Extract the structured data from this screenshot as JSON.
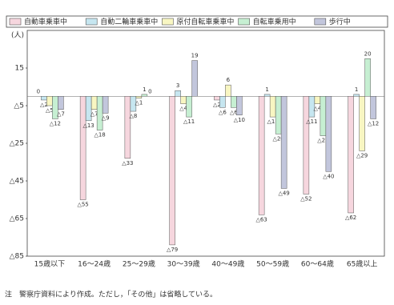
{
  "chart_data": {
    "type": "bar",
    "y_unit": "(人)",
    "categories": [
      "15歳以下",
      "16～24歳",
      "25～29歳",
      "30～39歳",
      "40～49歳",
      "50～59歳",
      "60～64歳",
      "65歳以上"
    ],
    "series": [
      {
        "name": "自動車乗車中",
        "color": "#f6d6de",
        "values": [
          0,
          -55,
          -33,
          -79,
          -2,
          -63,
          -52,
          -62
        ],
        "value_labels": [
          "0",
          "△55",
          "△33",
          "△79",
          "△2",
          "△63",
          "△52",
          "△62"
        ]
      },
      {
        "name": "自動二輪車乗車中",
        "color": "#c6e6f0",
        "values": [
          -2,
          -13,
          -8,
          3,
          -6,
          1,
          -11,
          1
        ],
        "value_labels": [
          "△2",
          "△13",
          "△8",
          "3",
          "△6",
          "1",
          "△11",
          "1"
        ]
      },
      {
        "name": "原付自転車乗車中",
        "color": "#f8f6c2",
        "values": [
          -5,
          -7,
          -1,
          -4,
          6,
          -11,
          -4,
          -29
        ],
        "value_labels": [
          "△5",
          "△7",
          "△1",
          "△4",
          "6",
          "△11",
          "△4",
          "△29"
        ]
      },
      {
        "name": "自転車乗用中",
        "color": "#c6efd2",
        "values": [
          -12,
          -18,
          1,
          -11,
          -6,
          -20,
          -21,
          20
        ],
        "value_labels": [
          "△12",
          "△18",
          "1",
          "△11",
          "△6",
          "△20",
          "△21",
          "20"
        ]
      },
      {
        "name": "歩行中",
        "color": "#c2c6dc",
        "values": [
          -7,
          -9,
          0,
          19,
          -10,
          -49,
          -40,
          -12
        ],
        "value_labels": [
          "△7",
          "△9",
          "0",
          "19",
          "△10",
          "△49",
          "△40",
          "△12"
        ]
      }
    ],
    "ylim": [
      -85,
      35
    ],
    "yticks": [
      15,
      {
        "value": -5,
        "label": "△5"
      },
      {
        "value": -25,
        "label": "△25"
      },
      {
        "value": -45,
        "label": "△45"
      },
      {
        "value": -65,
        "label": "△65"
      },
      {
        "value": -85,
        "label": "△85"
      }
    ],
    "note": "注　警察庁資料により作成。ただし，「その他」は省略している。"
  }
}
